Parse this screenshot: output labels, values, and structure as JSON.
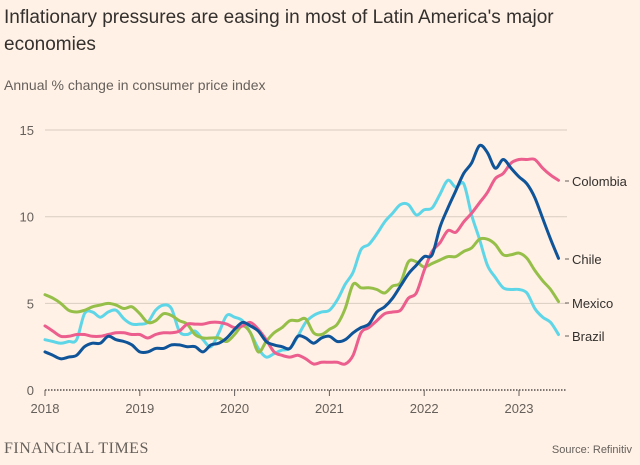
{
  "chart_data": {
    "type": "line",
    "title": "Inflationary pressures are easing in most of Latin America's major economies",
    "subtitle": "Annual % change in consumer price index",
    "x_start": "2018-01",
    "x_end": "2023-06",
    "frequency": "monthly",
    "xticks": [
      "2018",
      "2019",
      "2020",
      "2021",
      "2022",
      "2023"
    ],
    "yticks": [
      "0",
      "5",
      "10",
      "15"
    ],
    "ylim": [
      0,
      15
    ],
    "series": [
      {
        "name": "Colombia",
        "color": "#eb5e8d",
        "values": [
          3.7,
          3.4,
          3.1,
          3.1,
          3.2,
          3.2,
          3.1,
          3.1,
          3.2,
          3.3,
          3.3,
          3.2,
          3.2,
          3.0,
          3.2,
          3.3,
          3.3,
          3.4,
          3.8,
          3.8,
          3.8,
          3.9,
          3.9,
          3.8,
          3.6,
          3.7,
          3.9,
          3.5,
          2.9,
          2.2,
          2.0,
          1.9,
          2.0,
          1.8,
          1.5,
          1.6,
          1.6,
          1.6,
          1.5,
          2.0,
          3.3,
          3.6,
          4.0,
          4.4,
          4.5,
          4.6,
          5.3,
          5.6,
          6.9,
          8.0,
          8.5,
          9.2,
          9.1,
          9.7,
          10.2,
          10.8,
          11.4,
          12.2,
          12.5,
          13.1,
          13.3,
          13.3,
          13.3,
          12.8,
          12.4,
          12.1
        ]
      },
      {
        "name": "Chile",
        "color": "#0f5499",
        "values": [
          2.2,
          2.0,
          1.8,
          1.9,
          2.0,
          2.5,
          2.7,
          2.7,
          3.1,
          2.9,
          2.8,
          2.6,
          2.2,
          2.2,
          2.4,
          2.4,
          2.6,
          2.6,
          2.5,
          2.5,
          2.2,
          2.6,
          2.7,
          3.0,
          3.5,
          3.9,
          3.7,
          3.4,
          2.8,
          2.6,
          2.5,
          2.4,
          3.1,
          3.0,
          2.7,
          3.0,
          3.1,
          2.8,
          2.9,
          3.3,
          3.6,
          3.8,
          4.5,
          4.8,
          5.3,
          6.0,
          6.7,
          7.2,
          7.7,
          7.8,
          9.4,
          10.5,
          11.5,
          12.5,
          13.1,
          14.1,
          13.7,
          12.8,
          13.3,
          12.8,
          12.3,
          11.9,
          11.1,
          9.9,
          8.7,
          7.6
        ]
      },
      {
        "name": "Mexico",
        "color": "#96bf4a",
        "values": [
          5.5,
          5.3,
          5.0,
          4.6,
          4.5,
          4.6,
          4.8,
          4.9,
          5.0,
          4.9,
          4.7,
          4.8,
          4.4,
          3.9,
          4.0,
          4.4,
          4.3,
          4.0,
          3.8,
          3.2,
          3.0,
          3.0,
          3.0,
          2.8,
          3.2,
          3.7,
          3.3,
          2.2,
          2.8,
          3.3,
          3.6,
          4.0,
          4.0,
          4.1,
          3.3,
          3.2,
          3.5,
          3.8,
          4.7,
          6.1,
          5.9,
          5.9,
          5.8,
          5.6,
          6.0,
          6.2,
          7.4,
          7.4,
          7.1,
          7.3,
          7.5,
          7.7,
          7.7,
          8.0,
          8.2,
          8.7,
          8.7,
          8.4,
          7.8,
          7.8,
          7.9,
          7.6,
          6.9,
          6.3,
          5.8,
          5.1
        ]
      },
      {
        "name": "Brazil",
        "color": "#5fd6e8",
        "values": [
          2.9,
          2.8,
          2.7,
          2.8,
          2.9,
          4.4,
          4.5,
          4.2,
          4.5,
          4.6,
          4.1,
          3.8,
          3.8,
          3.9,
          4.6,
          4.9,
          4.7,
          3.4,
          3.2,
          3.4,
          2.9,
          2.5,
          3.3,
          4.3,
          4.2,
          4.0,
          3.3,
          2.4,
          1.9,
          2.1,
          2.3,
          2.4,
          3.1,
          3.9,
          4.3,
          4.5,
          4.6,
          5.2,
          6.1,
          6.8,
          8.1,
          8.4,
          9.0,
          9.7,
          10.2,
          10.7,
          10.7,
          10.1,
          10.4,
          10.5,
          11.3,
          12.1,
          11.7,
          11.9,
          10.1,
          8.7,
          7.2,
          6.5,
          5.9,
          5.8,
          5.8,
          5.6,
          4.7,
          4.2,
          3.9,
          3.2
        ]
      }
    ],
    "source": "Source: Refinitiv",
    "brand": "FINANCIAL TIMES"
  }
}
